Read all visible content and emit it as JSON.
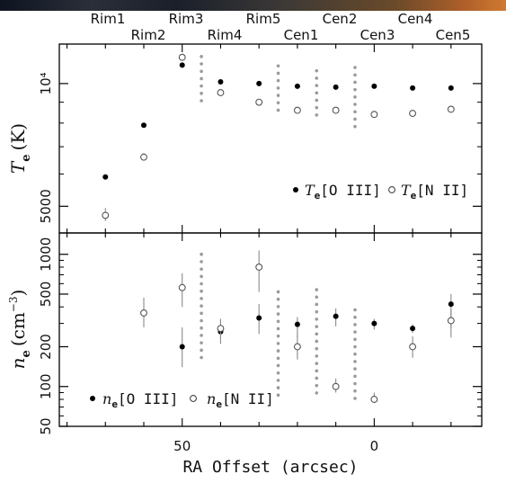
{
  "positions": {
    "row1": [
      "Rim1",
      "Rim3",
      "Rim5",
      "Cen2",
      "Cen4"
    ],
    "row2": [
      "Rim2",
      "Rim4",
      "Cen1",
      "Cen3",
      "Cen5"
    ]
  },
  "chart_data": [
    {
      "type": "scatter",
      "panel": "top",
      "ylabel_var": "T",
      "ylabel_sub": "e",
      "ylabel_unit": "(K)",
      "yscale": "log",
      "ylim": [
        4300,
        12500
      ],
      "xlim": [
        82,
        -28
      ],
      "yticks": [
        {
          "value": 5000,
          "label": "5000"
        },
        {
          "value": 10000,
          "label": "10⁴"
        }
      ],
      "series": [
        {
          "legend_var": "T",
          "legend_sub": "e",
          "legend_ion": "[O III]",
          "marker": "filled",
          "x": [
            70,
            60,
            50,
            40,
            30,
            20,
            10,
            0,
            -10,
            -20
          ],
          "y": [
            5900,
            7900,
            11100,
            10100,
            10000,
            9850,
            9800,
            9850,
            9750,
            9750
          ]
        },
        {
          "legend_var": "T",
          "legend_sub": "e",
          "legend_ion": "[N II]",
          "marker": "open",
          "x": [
            70,
            60,
            50,
            40,
            30,
            20,
            10,
            0,
            -10,
            -20
          ],
          "y": [
            4750,
            6600,
            11600,
            9500,
            9000,
            8600,
            8600,
            8400,
            8450,
            8650
          ],
          "err_low": [
            4600,
            6500,
            11400,
            9400,
            8900,
            8500,
            8500,
            8300,
            8350,
            8550
          ],
          "err_high": [
            4950,
            6750,
            11800,
            9650,
            9150,
            8700,
            8700,
            8550,
            8600,
            8800
          ]
        }
      ],
      "slit_ranges": [
        {
          "x": 45,
          "ymin": 8750,
          "ymax": 11650
        },
        {
          "x": 25,
          "ymin": 8550,
          "ymax": 11050
        },
        {
          "x": 15,
          "ymin": 8050,
          "ymax": 10750
        },
        {
          "x": 5,
          "ymin": 7750,
          "ymax": 10950
        }
      ]
    },
    {
      "type": "scatter",
      "panel": "bottom",
      "ylabel_var": "n",
      "ylabel_sub": "e",
      "ylabel_unit": "(cm",
      "ylabel_unit_sup": "−3",
      "ylabel_unit_close": ")",
      "xlabel": "RA Offset (arcsec)",
      "yscale": "log",
      "ylim": [
        50,
        1450
      ],
      "xlim": [
        82,
        -28
      ],
      "yticks": [
        {
          "value": 50,
          "label": "50"
        },
        {
          "value": 100,
          "label": "100"
        },
        {
          "value": 200,
          "label": "200"
        },
        {
          "value": 500,
          "label": "500"
        },
        {
          "value": 1000,
          "label": "1000"
        }
      ],
      "xticks": [
        {
          "value": 50,
          "label": "50"
        },
        {
          "value": 0,
          "label": "0"
        }
      ],
      "series": [
        {
          "legend_var": "n",
          "legend_sub": "e",
          "legend_ion": "[O III]",
          "marker": "filled",
          "x": [
            50,
            40,
            30,
            20,
            10,
            0,
            -10,
            -20
          ],
          "y": [
            200,
            260,
            330,
            295,
            340,
            300,
            275,
            420
          ],
          "err_low": [
            140,
            210,
            250,
            235,
            285,
            270,
            255,
            275
          ],
          "err_high": [
            280,
            320,
            420,
            335,
            390,
            325,
            295,
            500
          ]
        },
        {
          "legend_var": "n",
          "legend_sub": "e",
          "legend_ion": "[N II]",
          "marker": "open",
          "x": [
            60,
            50,
            40,
            30,
            20,
            10,
            0,
            -10,
            -20
          ],
          "y": [
            360,
            560,
            275,
            800,
            200,
            100,
            80,
            200,
            315
          ],
          "err_low": [
            280,
            400,
            230,
            520,
            160,
            90,
            75,
            165,
            235
          ],
          "err_high": [
            470,
            720,
            325,
            1070,
            245,
            115,
            90,
            240,
            380
          ]
        }
      ],
      "slit_ranges": [
        {
          "x": 45,
          "ymin": 150,
          "ymax": 1000
        },
        {
          "x": 25,
          "ymin": 80,
          "ymax": 520
        },
        {
          "x": 15,
          "ymin": 85,
          "ymax": 540
        },
        {
          "x": 5,
          "ymin": 75,
          "ymax": 380
        }
      ]
    }
  ]
}
